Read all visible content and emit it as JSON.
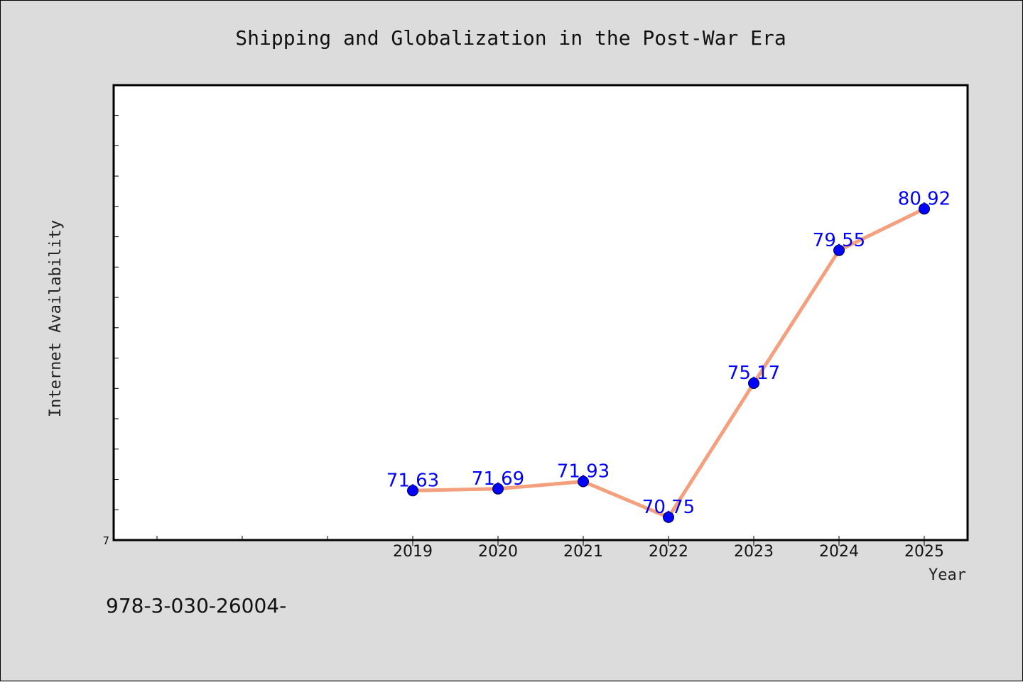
{
  "chart_data": {
    "type": "line",
    "title": "Shipping and Globalization in the Post-War Era",
    "xlabel": "Year",
    "ylabel": "Internet Availability",
    "categories": [
      "2019",
      "2020",
      "2021",
      "2022",
      "2023",
      "2024",
      "2025"
    ],
    "series": [
      {
        "values": [
          71.63,
          71.69,
          71.93,
          70.75,
          75.17,
          79.55,
          80.92
        ]
      }
    ],
    "data_labels": [
      "71.63",
      "71.69",
      "71.93",
      "70.75",
      "75.17",
      "79.55",
      "80.92"
    ],
    "yticklabels": [
      "7"
    ],
    "ylim": [
      70,
      85
    ],
    "grid": false,
    "legend": "none",
    "colors": {
      "line": "#f4a07e",
      "marker": "#0000ff",
      "label": "#0000ff",
      "background": "#dcdcdc",
      "plot_bg": "#ffffff"
    }
  },
  "footnote": "978-3-030-26004-"
}
